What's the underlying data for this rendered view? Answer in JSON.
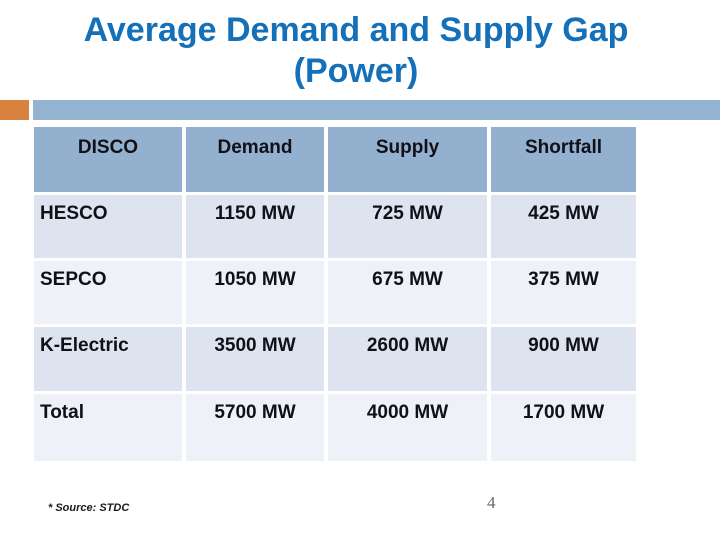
{
  "slide": {
    "title": {
      "line1": "Average Demand and Supply Gap",
      "line2": "(Power)"
    },
    "footer": {
      "source_note": "* Source: STDC",
      "page_number": "4"
    }
  },
  "table": {
    "headers": [
      "DISCO",
      "Demand",
      "Supply",
      "Shortfall"
    ],
    "rows": [
      {
        "cells": [
          "HESCO",
          "1150 MW",
          "725 MW",
          "425 MW"
        ]
      },
      {
        "cells": [
          "SEPCO",
          "1050 MW",
          "675 MW",
          "375 MW"
        ]
      },
      {
        "cells": [
          "K-Electric",
          "3500 MW",
          "2600 MW",
          "900 MW"
        ]
      },
      {
        "cells": [
          "Total",
          "5700 MW",
          "4000 MW",
          "1700 MW"
        ]
      }
    ]
  },
  "chart_data": {
    "type": "table",
    "title": "Average Demand and Supply Gap (Power)",
    "columns": [
      "DISCO",
      "Demand",
      "Supply",
      "Shortfall"
    ],
    "units": "MW",
    "rows": [
      {
        "disco": "HESCO",
        "demand_mw": 1150,
        "supply_mw": 725,
        "shortfall_mw": 425
      },
      {
        "disco": "SEPCO",
        "demand_mw": 1050,
        "supply_mw": 675,
        "shortfall_mw": 375
      },
      {
        "disco": "K-Electric",
        "demand_mw": 3500,
        "supply_mw": 2600,
        "shortfall_mw": 900
      },
      {
        "disco": "Total",
        "demand_mw": 5700,
        "supply_mw": 4000,
        "shortfall_mw": 1700
      }
    ]
  },
  "colors": {
    "title-blue": "#1470B8",
    "banner-blue": "#94B3D0",
    "accent-orange": "#D9813E",
    "header-cell-bg": "#93B1CE",
    "row-dark-bg": "#DDE4EF",
    "row-light-bg": "#EEF2F8",
    "cell-text": "#101018",
    "page-number-gray": "#6F655C"
  }
}
